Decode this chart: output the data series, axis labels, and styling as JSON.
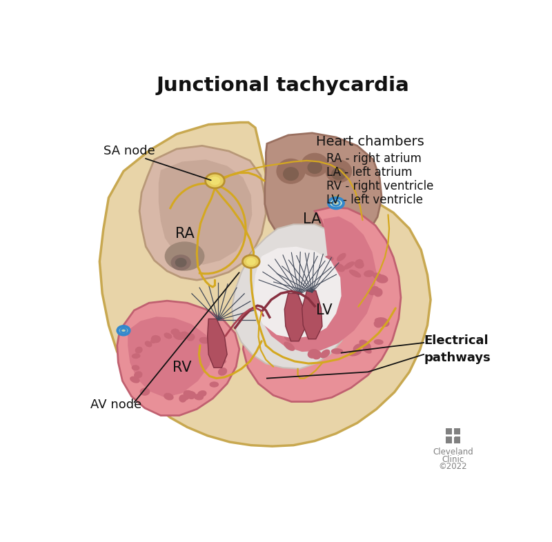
{
  "title": "Junctional tachycardia",
  "title_fontsize": 21,
  "title_fontweight": "bold",
  "bg_color": "#ffffff",
  "labels": {
    "SA_node": "SA node",
    "AV_node": "AV node",
    "RA": "RA",
    "LA": "LA",
    "RV": "RV",
    "LV": "LV",
    "electrical_pathways": "Electrical\npathways",
    "heart_chambers": "Heart chambers",
    "RA_full": "RA - right atrium",
    "LA_full": "LA - left atrium",
    "RV_full": "RV - right ventricle",
    "LV_full": "LV - left ventricle"
  },
  "colors": {
    "heart_outer": "#e8d4a8",
    "heart_outer_border": "#c8a850",
    "ra_fill": "#d4a898",
    "la_fill": "#b08878",
    "rv_fill": "#e8909a",
    "lv_fill": "#e8909a",
    "septum_white": "#e8e4e0",
    "electrical_pathway": "#d4a820",
    "text_color": "#111111",
    "blue_circle": "#3388cc",
    "av_node_color": "#e8d060",
    "sa_node_color": "#e8d060",
    "trabeculae": "#d06878",
    "dark_red": "#c04050"
  },
  "figsize": [
    8.0,
    7.86
  ],
  "dpi": 100
}
